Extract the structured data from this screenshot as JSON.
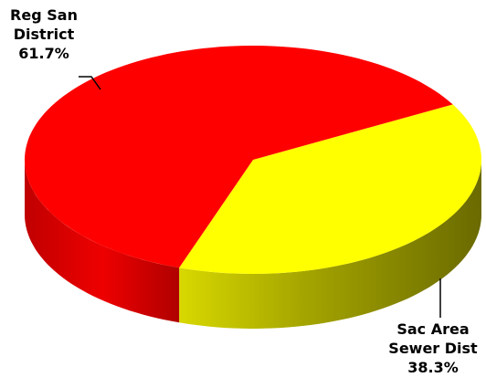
{
  "chart_data": {
    "type": "pie3d",
    "categories": [
      "Reg San District",
      "Sac Area Sewer Dist"
    ],
    "values": [
      61.7,
      38.3
    ],
    "value_labels": [
      "61.7%",
      "38.3%"
    ],
    "colors": [
      "#ff0000",
      "#ffff00"
    ]
  }
}
